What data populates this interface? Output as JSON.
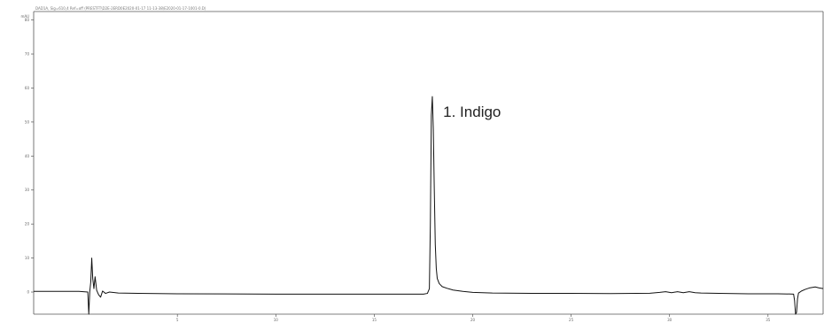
{
  "header": {
    "info": "DAD1A, Sig=610,4 Ref=off (PRESTFT\\D2E-2ERD0E2020-01-17 11-13-38\\E2020-01-17-1001-0.D)"
  },
  "chart_data": {
    "type": "line",
    "ylabel": "mAU",
    "xlim": [
      -2.3,
      37.8
    ],
    "ylim": [
      -6.5,
      82.5
    ],
    "xticks": [
      {
        "value": 5,
        "label": "5"
      },
      {
        "value": 10,
        "label": "10"
      },
      {
        "value": 15,
        "label": "15"
      },
      {
        "value": 20,
        "label": "20"
      },
      {
        "value": 25,
        "label": "25"
      },
      {
        "value": 30,
        "label": "30"
      },
      {
        "value": 35,
        "label": "35"
      }
    ],
    "yticks": [
      {
        "value": 0,
        "label": "0"
      },
      {
        "value": 10,
        "label": "10"
      },
      {
        "value": 20,
        "label": "20"
      },
      {
        "value": 30,
        "label": "30"
      },
      {
        "value": 40,
        "label": "40"
      },
      {
        "value": 50,
        "label": "50"
      },
      {
        "value": 60,
        "label": "60"
      },
      {
        "value": 70,
        "label": "70"
      },
      {
        "value": 80,
        "label": "80"
      }
    ],
    "series": [
      {
        "color": "#111111",
        "x": [
          -2.3,
          0.0,
          0.45,
          0.5,
          0.55,
          0.6,
          0.65,
          0.7,
          0.76,
          0.82,
          0.9,
          1.0,
          1.1,
          1.2,
          1.35,
          1.55,
          2.0,
          3.0,
          5.0,
          10.0,
          15.0,
          17.5,
          17.7,
          17.8,
          17.85,
          17.9,
          17.95,
          18.0,
          18.05,
          18.1,
          18.15,
          18.2,
          18.3,
          18.45,
          18.7,
          19.0,
          19.5,
          20.0,
          21.0,
          23.0,
          25.0,
          27.0,
          29.0,
          29.5,
          29.8,
          30.1,
          30.4,
          30.7,
          31.0,
          31.3,
          31.6,
          32.5,
          34.0,
          35.5,
          36.3,
          36.35,
          36.4,
          36.45,
          36.5,
          36.55,
          36.6,
          36.7,
          36.9,
          37.1,
          37.4,
          37.6,
          37.8
        ],
        "y": [
          0.2,
          0.2,
          0.0,
          -6.5,
          0.2,
          3.0,
          10.0,
          4.0,
          1.0,
          4.5,
          0.5,
          -0.8,
          -1.5,
          0.3,
          -0.4,
          0.0,
          -0.3,
          -0.4,
          -0.5,
          -0.6,
          -0.6,
          -0.6,
          -0.4,
          1.0,
          20.0,
          52.0,
          57.5,
          48.0,
          30.0,
          14.0,
          7.0,
          4.0,
          2.5,
          1.6,
          1.1,
          0.6,
          0.2,
          -0.1,
          -0.3,
          -0.4,
          -0.4,
          -0.45,
          -0.35,
          -0.1,
          0.1,
          -0.2,
          0.1,
          -0.2,
          0.1,
          -0.2,
          -0.3,
          -0.4,
          -0.5,
          -0.5,
          -0.6,
          -2.5,
          -6.5,
          -6.0,
          -2.0,
          -0.3,
          -0.1,
          0.3,
          0.8,
          1.2,
          1.5,
          1.2,
          1.0
        ]
      }
    ],
    "annotations": [
      {
        "text": "1. Indigo",
        "x": 18.5,
        "y": 51.5
      }
    ]
  }
}
